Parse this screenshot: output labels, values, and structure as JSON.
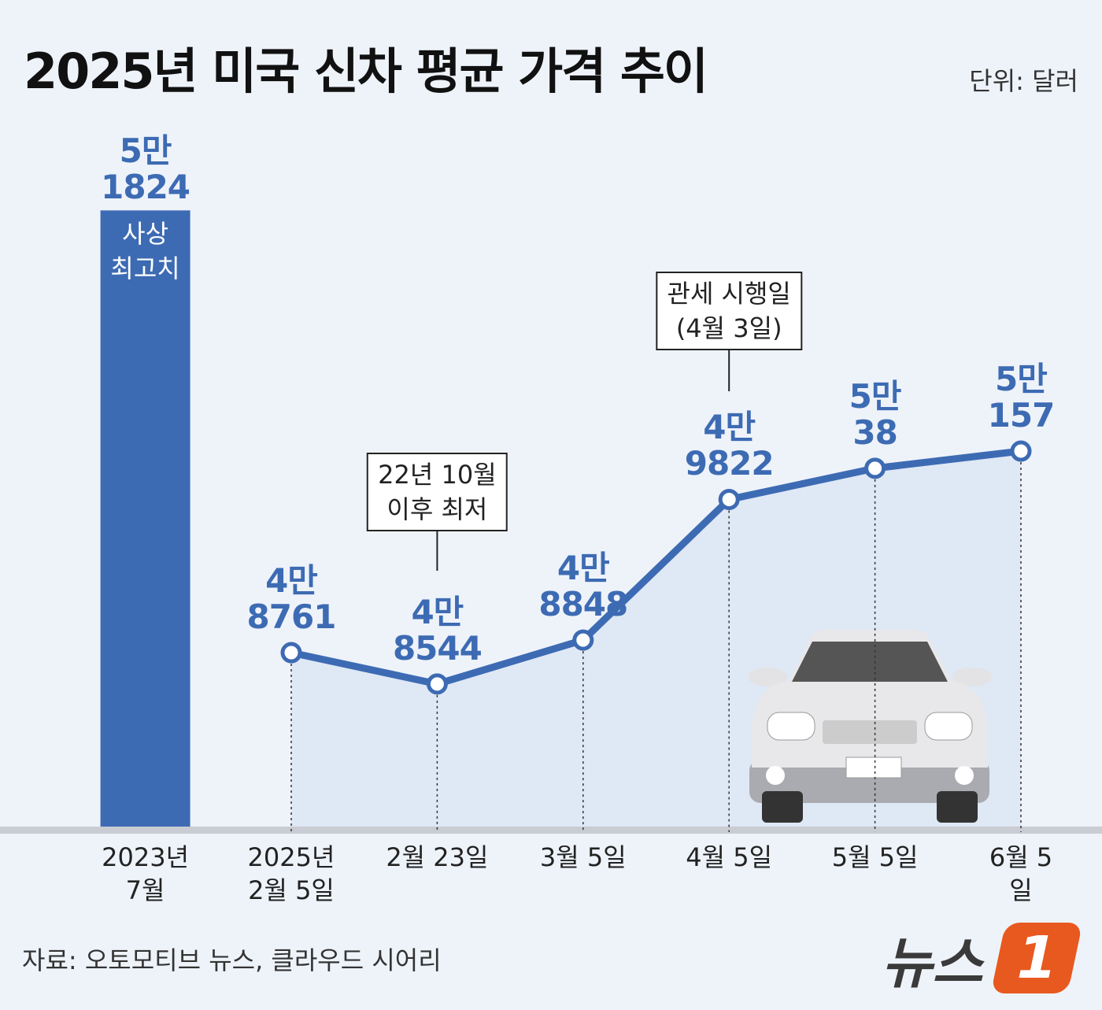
{
  "chart_data": {
    "type": "bar_line",
    "title": "2025년 미국 신차 평균 가격 추이",
    "unit": "단위: 달러",
    "categories": [
      "2023년\n7월",
      "2025년\n2월 5일",
      "2월 23일",
      "3월 5일",
      "4월 5일",
      "5월 5일",
      "6월 5일"
    ],
    "series": [
      {
        "type": "bar",
        "color": "#3d6bb3",
        "values": [
          51824,
          null,
          null,
          null,
          null,
          null,
          null
        ],
        "value_labels": [
          "5만\n1824",
          null,
          null,
          null,
          null,
          null,
          null
        ]
      },
      {
        "type": "line",
        "color": "#3d6bb3",
        "values": [
          null,
          48761,
          48544,
          48848,
          49822,
          50038,
          50157
        ],
        "value_labels": [
          null,
          "4만\n8761",
          "4만\n8544",
          "4만\n8848",
          "4만\n9822",
          "5만\n38",
          "5만\n157"
        ]
      }
    ],
    "ylim": [
      47540,
      52000
    ],
    "annotations": [
      "사상\n최고치",
      "22년 10월\n이후 최저",
      "관세 시행일\n(4월 3일)"
    ],
    "source": "자료: 오토모티브 뉴스, 클라우드 시어리",
    "logo": {
      "text": "뉴스",
      "mark": "1"
    }
  }
}
